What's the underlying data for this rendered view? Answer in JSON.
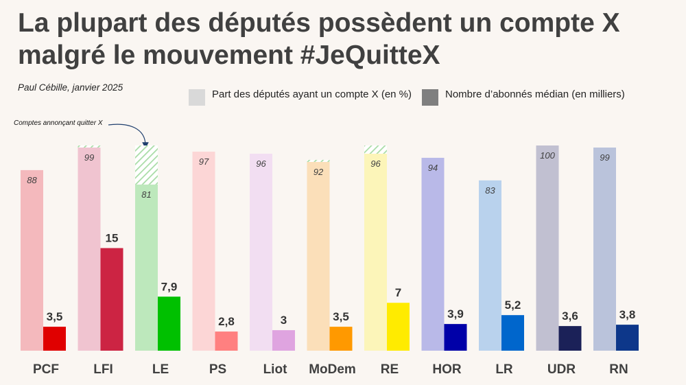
{
  "title": "La plupart des députés possèdent un compte X malgré le mouvement #JeQuitteX",
  "author": "Paul Cébille, janvier 2025",
  "legend": [
    {
      "label": "Part des députés ayant un compte X (en %)",
      "color": "#d9d9d9"
    },
    {
      "label": "Nombre d’abonnés médian (en milliers)",
      "color": "#7f7f7f"
    }
  ],
  "annotation": "Comptes annonçant quitter X",
  "chart_data": {
    "type": "bar",
    "categories": [
      "PCF",
      "LFI",
      "LE",
      "PS",
      "Liot",
      "MoDem",
      "RE",
      "HOR",
      "LR",
      "UDR",
      "RN"
    ],
    "series": [
      {
        "name": "Part des députés ayant un compte X (en %)",
        "values": [
          88,
          99,
          81,
          97,
          96,
          92,
          96,
          94,
          83,
          100,
          99
        ],
        "labels": [
          "88",
          "99",
          "81",
          "97",
          "96",
          "92",
          "96",
          "94",
          "83",
          "100",
          "99"
        ],
        "quitting_extra": [
          0,
          1,
          19,
          0,
          0,
          1,
          4,
          0,
          0,
          0,
          0
        ],
        "colors": [
          "#f4b9bd",
          "#f0c4d0",
          "#bde8bc",
          "#fcd6d6",
          "#f2def2",
          "#fbdfb9",
          "#fcf5b9",
          "#b9b9e8",
          "#b9d2ed",
          "#c1c0d1",
          "#bac3db"
        ]
      },
      {
        "name": "Nombre d’abonnés médian (en milliers)",
        "values": [
          3.5,
          15,
          7.9,
          2.8,
          3,
          3.5,
          7,
          3.9,
          5.2,
          3.6,
          3.8
        ],
        "labels": [
          "3,5",
          "15",
          "7,9",
          "2,8",
          "3",
          "3,5",
          "7",
          "3,9",
          "5,2",
          "3,6",
          "3,8"
        ],
        "colors": [
          "#e00000",
          "#cc2443",
          "#00c000",
          "#ff8080",
          "#dfa4e0",
          "#ff9900",
          "#ffeb00",
          "#0000a8",
          "#0066cc",
          "#1b2158",
          "#0d378a"
        ]
      }
    ],
    "ylim_percent": [
      0,
      100
    ],
    "ylim_thousands": [
      0,
      30
    ]
  }
}
